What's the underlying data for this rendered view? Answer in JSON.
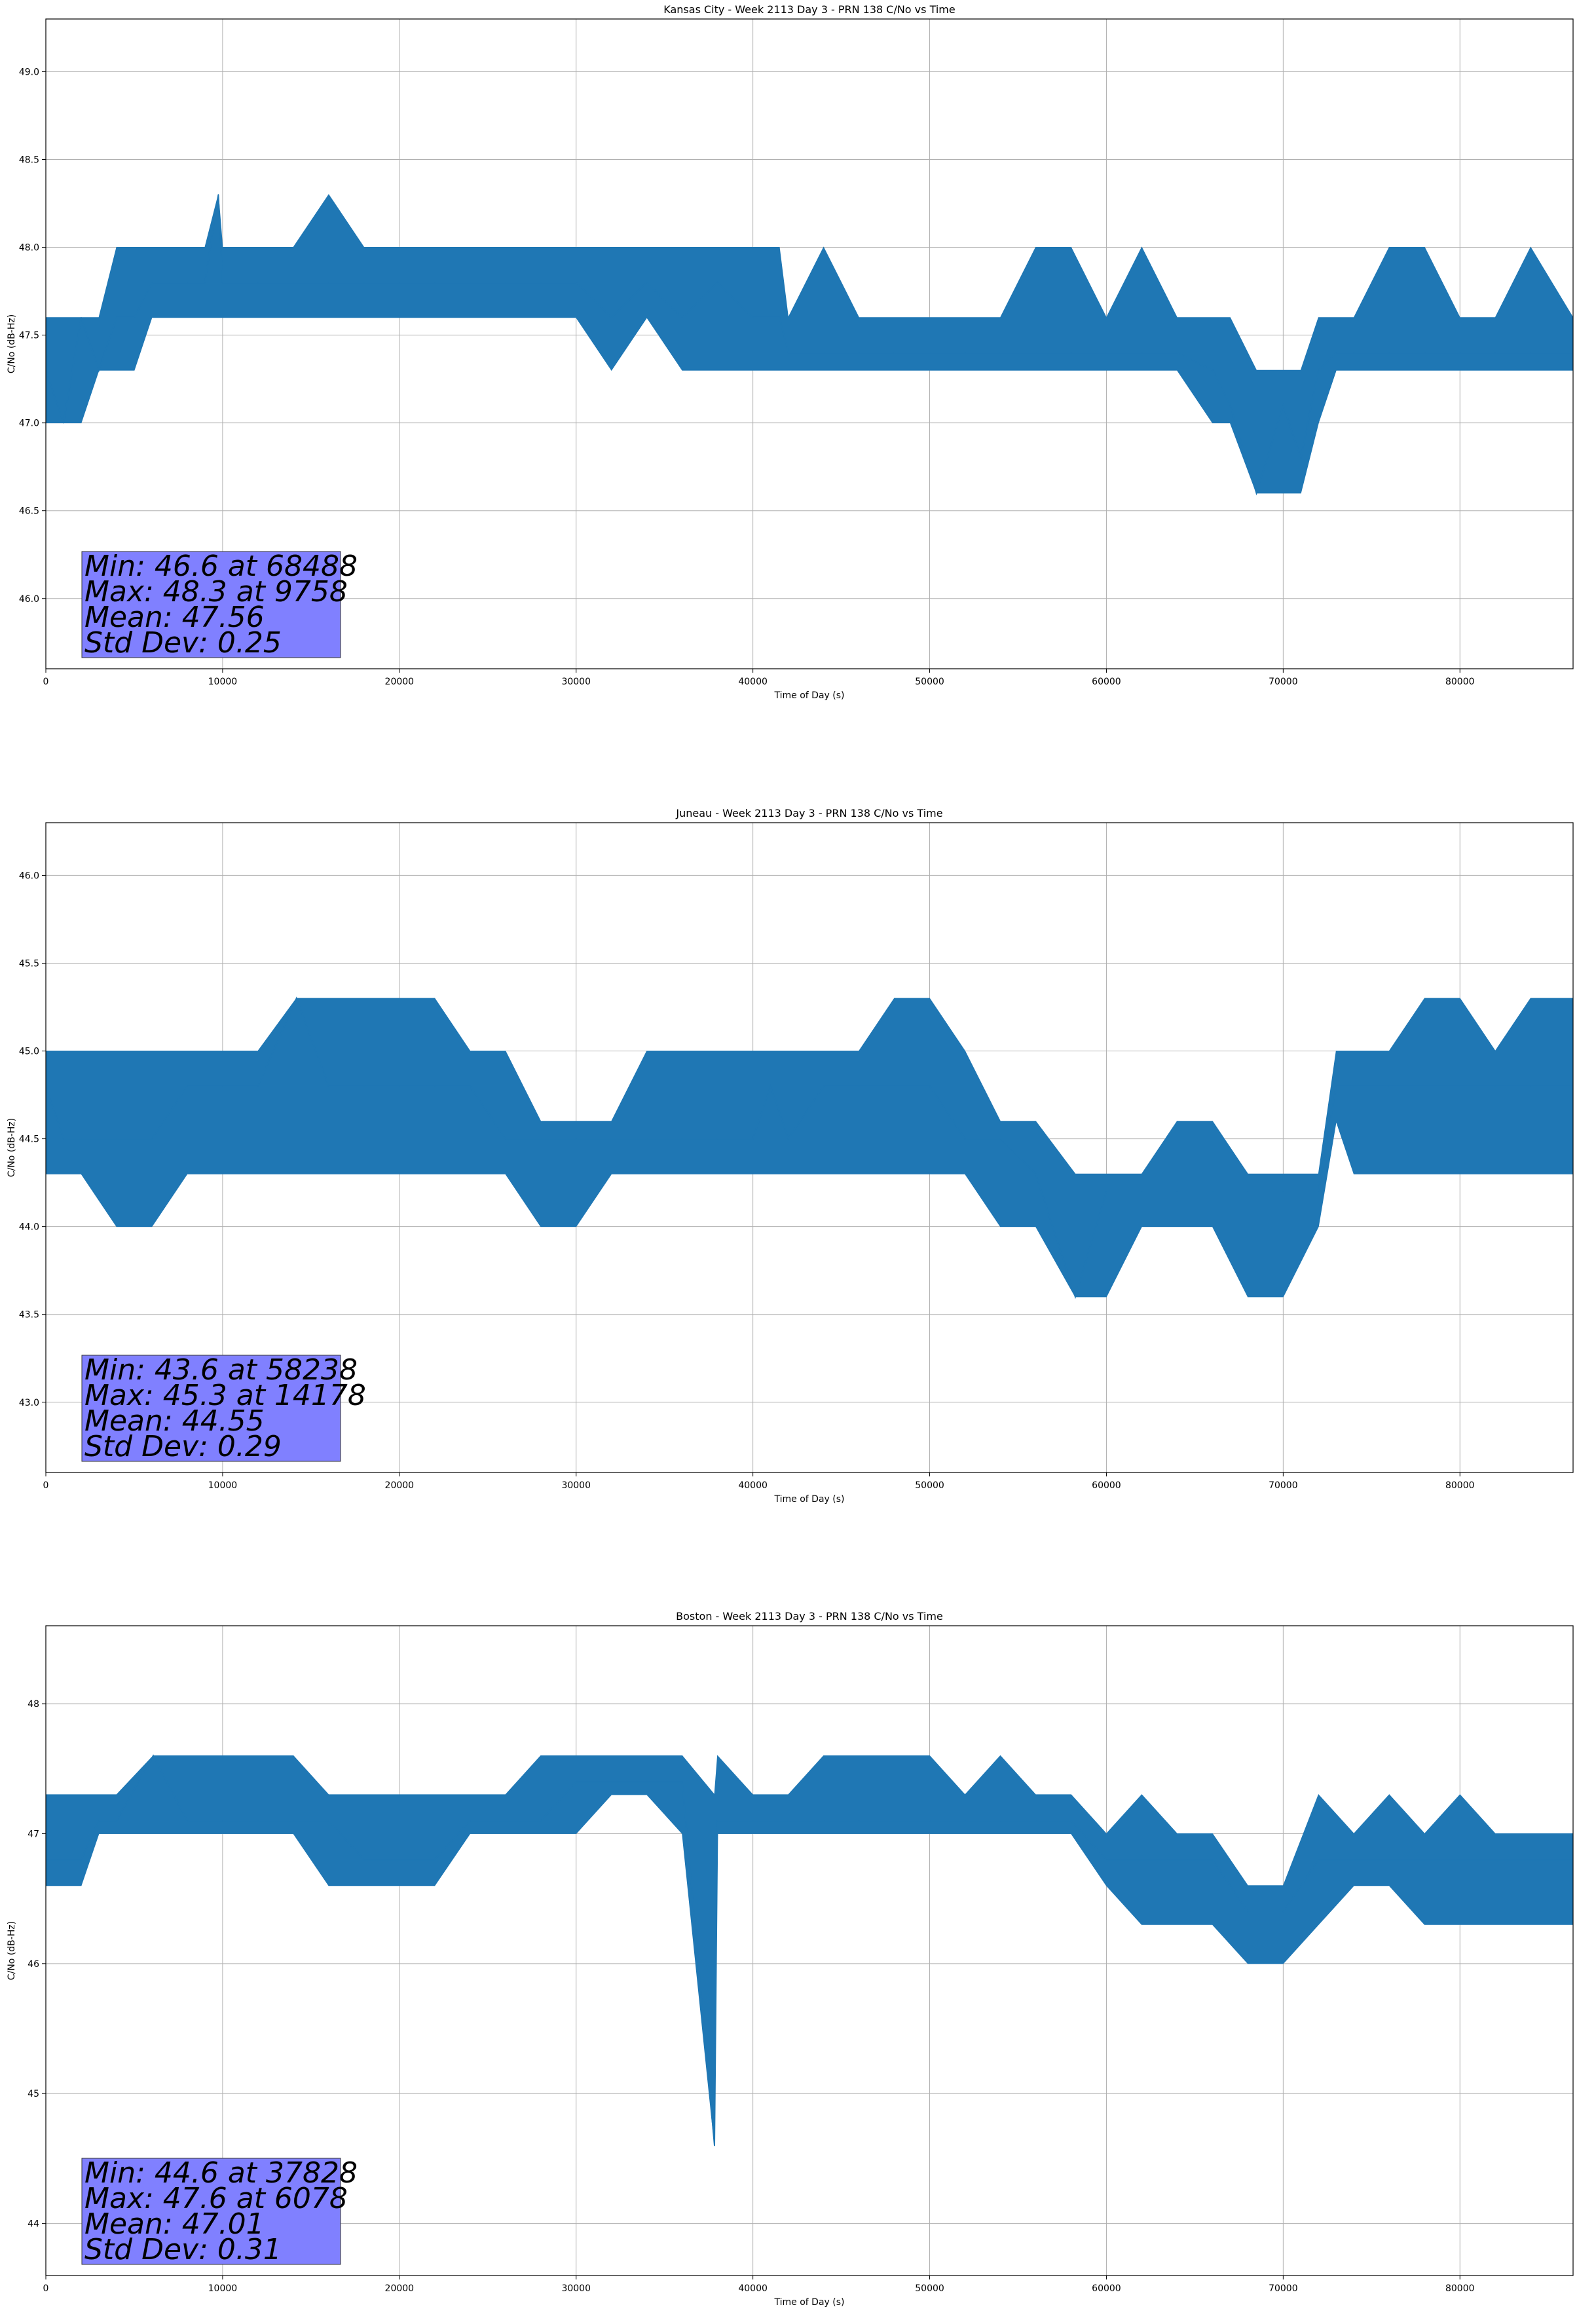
{
  "chart_data": [
    {
      "type": "line",
      "title": "Kansas City - Week 2113 Day 3 - PRN 138 C/No vs Time",
      "xlabel": "Time of Day (s)",
      "ylabel": "C/No (dB-Hz)",
      "xlim": [
        0,
        86400
      ],
      "ylim": [
        45.6,
        49.3
      ],
      "xticks": [
        "0",
        "10000",
        "20000",
        "30000",
        "40000",
        "50000",
        "60000",
        "70000",
        "80000"
      ],
      "yticks": [
        "46.0",
        "46.5",
        "47.0",
        "47.5",
        "48.0",
        "48.5",
        "49.0"
      ],
      "grid": true,
      "color": "#1f77b4",
      "series": [
        {
          "x": [
            0,
            1000,
            2000,
            3000,
            4000,
            5000,
            6000,
            7000,
            8000,
            9000,
            9758,
            10000,
            12000,
            14000,
            16000,
            18000,
            20000,
            22000,
            24000,
            26000,
            28000,
            30000,
            32000,
            34000,
            36000,
            38000,
            40000,
            41500,
            42000,
            44000,
            46000,
            48000,
            50000,
            52000,
            54000,
            56000,
            58000,
            60000,
            62000,
            64000,
            66000,
            67000,
            68488,
            70000,
            71000,
            72000,
            73000,
            74000,
            76000,
            78000,
            80000,
            82000,
            84000,
            86400
          ],
          "y": [
            47.3,
            47.0,
            47.6,
            47.3,
            47.6,
            47.6,
            47.8,
            47.8,
            47.8,
            47.8,
            48.3,
            47.8,
            47.8,
            47.8,
            47.8,
            47.8,
            47.8,
            47.8,
            47.8,
            47.8,
            47.8,
            47.8,
            47.6,
            47.8,
            47.6,
            47.8,
            47.6,
            47.6,
            47.4,
            47.4,
            47.4,
            47.4,
            47.4,
            47.4,
            47.4,
            47.4,
            47.4,
            47.4,
            47.4,
            47.4,
            47.3,
            47.1,
            46.6,
            47.1,
            46.8,
            47.3,
            47.4,
            47.4,
            47.4,
            47.4,
            47.4,
            47.4,
            47.4,
            47.4
          ],
          "band_low": [
            47.0,
            47.0,
            47.0,
            47.3,
            47.3,
            47.3,
            47.6,
            47.6,
            47.6,
            47.6,
            47.6,
            47.6,
            47.6,
            47.6,
            47.6,
            47.6,
            47.6,
            47.6,
            47.6,
            47.6,
            47.6,
            47.6,
            47.3,
            47.6,
            47.3,
            47.3,
            47.3,
            47.3,
            47.3,
            47.3,
            47.3,
            47.3,
            47.3,
            47.3,
            47.3,
            47.3,
            47.3,
            47.3,
            47.3,
            47.3,
            47.0,
            47.0,
            46.6,
            46.6,
            46.6,
            47.0,
            47.3,
            47.3,
            47.3,
            47.3,
            47.3,
            47.3,
            47.3,
            47.3
          ],
          "band_high": [
            47.6,
            47.6,
            47.6,
            47.6,
            48.0,
            48.0,
            48.0,
            48.0,
            48.0,
            48.0,
            48.3,
            48.0,
            48.0,
            48.0,
            48.3,
            48.0,
            48.0,
            48.0,
            48.0,
            48.0,
            48.0,
            48.0,
            48.0,
            48.0,
            48.0,
            48.0,
            48.0,
            48.0,
            47.6,
            48.0,
            47.6,
            47.6,
            47.6,
            47.6,
            47.6,
            48.0,
            48.0,
            47.6,
            48.0,
            47.6,
            47.6,
            47.6,
            47.3,
            47.3,
            47.3,
            47.6,
            47.6,
            47.6,
            48.0,
            48.0,
            47.6,
            47.6,
            48.0,
            47.6
          ]
        }
      ],
      "annotation": {
        "lines": [
          "Min: 46.6 at 68488",
          "Max: 48.3 at 9758",
          "Mean: 47.56",
          "Std Dev: 0.25"
        ],
        "box_color": "#8080ff"
      }
    },
    {
      "type": "line",
      "title": "Juneau - Week 2113 Day 3 - PRN 138 C/No vs Time",
      "xlabel": "Time of Day (s)",
      "ylabel": "C/No (dB-Hz)",
      "xlim": [
        0,
        86400
      ],
      "ylim": [
        42.6,
        46.3
      ],
      "xticks": [
        "0",
        "10000",
        "20000",
        "30000",
        "40000",
        "50000",
        "60000",
        "70000",
        "80000"
      ],
      "yticks": [
        "43.0",
        "43.5",
        "44.0",
        "44.5",
        "45.0",
        "45.5",
        "46.0"
      ],
      "grid": true,
      "color": "#1f77b4",
      "series": [
        {
          "x": [
            0,
            1000,
            2000,
            4000,
            6000,
            8000,
            10000,
            12000,
            14178,
            16000,
            18000,
            20000,
            22000,
            24000,
            26000,
            28000,
            30000,
            32000,
            34000,
            36000,
            38000,
            40000,
            41000,
            42000,
            44000,
            46000,
            48000,
            50000,
            52000,
            54000,
            56000,
            58238,
            60000,
            62000,
            64000,
            66000,
            68000,
            70000,
            72000,
            73000,
            74000,
            76000,
            78000,
            80000,
            82000,
            84000,
            86400
          ],
          "y": [
            44.8,
            44.5,
            44.5,
            44.5,
            44.5,
            44.8,
            44.8,
            44.8,
            45.3,
            44.8,
            44.8,
            44.8,
            44.8,
            44.8,
            44.5,
            44.5,
            44.5,
            44.5,
            44.5,
            44.5,
            44.5,
            44.5,
            44.8,
            44.5,
            44.8,
            44.8,
            44.8,
            44.8,
            44.5,
            44.5,
            44.3,
            43.6,
            44.2,
            44.2,
            44.2,
            44.2,
            44.2,
            44.2,
            44.2,
            44.8,
            44.8,
            44.8,
            44.8,
            44.8,
            44.8,
            44.8,
            44.8
          ],
          "band_low": [
            44.3,
            44.3,
            44.3,
            44.0,
            44.0,
            44.3,
            44.3,
            44.3,
            44.3,
            44.3,
            44.3,
            44.3,
            44.3,
            44.3,
            44.3,
            44.0,
            44.0,
            44.3,
            44.3,
            44.3,
            44.3,
            44.3,
            44.3,
            44.3,
            44.3,
            44.3,
            44.3,
            44.3,
            44.3,
            44.0,
            44.0,
            43.6,
            43.6,
            44.0,
            44.0,
            44.0,
            43.6,
            43.6,
            44.0,
            44.6,
            44.3,
            44.3,
            44.3,
            44.3,
            44.3,
            44.3,
            44.3
          ],
          "band_high": [
            45.0,
            45.0,
            45.0,
            45.0,
            45.0,
            45.0,
            45.0,
            45.0,
            45.3,
            45.3,
            45.3,
            45.3,
            45.3,
            45.0,
            45.0,
            44.6,
            44.6,
            44.6,
            45.0,
            45.0,
            45.0,
            45.0,
            45.0,
            45.0,
            45.0,
            45.0,
            45.3,
            45.3,
            45.0,
            44.6,
            44.6,
            44.3,
            44.3,
            44.3,
            44.6,
            44.6,
            44.3,
            44.3,
            44.3,
            45.0,
            45.0,
            45.0,
            45.3,
            45.3,
            45.0,
            45.3,
            45.3
          ]
        }
      ],
      "annotation": {
        "lines": [
          "Min: 43.6 at 58238",
          "Max: 45.3 at 14178",
          "Mean: 44.55",
          "Std Dev: 0.29"
        ],
        "box_color": "#8080ff"
      }
    },
    {
      "type": "line",
      "title": "Boston - Week 2113 Day 3 - PRN 138 C/No vs Time",
      "xlabel": "Time of Day (s)",
      "ylabel": "C/No (dB-Hz)",
      "xlim": [
        0,
        86400
      ],
      "ylim": [
        43.6,
        48.6
      ],
      "xticks": [
        "0",
        "10000",
        "20000",
        "30000",
        "40000",
        "50000",
        "60000",
        "70000",
        "80000"
      ],
      "yticks": [
        "44",
        "45",
        "46",
        "47",
        "48"
      ],
      "grid": true,
      "color": "#1f77b4",
      "series": [
        {
          "x": [
            0,
            1000,
            2000,
            3000,
            4000,
            6078,
            8000,
            10000,
            12000,
            14000,
            16000,
            18000,
            20000,
            22000,
            24000,
            26000,
            28000,
            30000,
            32000,
            34000,
            36000,
            37828,
            38000,
            40000,
            42000,
            44000,
            46000,
            48000,
            50000,
            52000,
            54000,
            56000,
            58000,
            60000,
            62000,
            64000,
            66000,
            68000,
            70000,
            72000,
            74000,
            76000,
            78000,
            80000,
            82000,
            84000,
            86400
          ],
          "y": [
            46.8,
            46.8,
            46.8,
            47.1,
            47.1,
            47.6,
            47.1,
            47.1,
            47.1,
            47.1,
            47.1,
            46.8,
            46.8,
            46.8,
            47.1,
            47.1,
            47.1,
            47.4,
            47.4,
            47.4,
            47.4,
            44.6,
            47.1,
            47.1,
            47.1,
            47.1,
            47.1,
            47.1,
            47.1,
            47.1,
            47.1,
            47.1,
            47.1,
            46.8,
            46.8,
            46.8,
            46.8,
            46.4,
            46.4,
            46.8,
            46.8,
            46.8,
            46.8,
            46.8,
            46.8,
            46.8,
            46.8
          ],
          "band_low": [
            46.6,
            46.6,
            46.6,
            47.0,
            47.0,
            47.0,
            47.0,
            47.0,
            47.0,
            47.0,
            46.6,
            46.6,
            46.6,
            46.6,
            47.0,
            47.0,
            47.0,
            47.0,
            47.3,
            47.3,
            47.0,
            44.6,
            47.0,
            47.0,
            47.0,
            47.0,
            47.0,
            47.0,
            47.0,
            47.0,
            47.0,
            47.0,
            47.0,
            46.6,
            46.3,
            46.3,
            46.3,
            46.0,
            46.0,
            46.3,
            46.6,
            46.6,
            46.3,
            46.3,
            46.3,
            46.3,
            46.3
          ],
          "band_high": [
            47.3,
            47.3,
            47.3,
            47.3,
            47.3,
            47.6,
            47.6,
            47.6,
            47.6,
            47.6,
            47.3,
            47.3,
            47.3,
            47.3,
            47.3,
            47.3,
            47.6,
            47.6,
            47.6,
            47.6,
            47.6,
            47.3,
            47.6,
            47.3,
            47.3,
            47.6,
            47.6,
            47.6,
            47.6,
            47.3,
            47.6,
            47.3,
            47.3,
            47.0,
            47.3,
            47.0,
            47.0,
            46.6,
            46.6,
            47.3,
            47.0,
            47.3,
            47.0,
            47.3,
            47.0,
            47.0,
            47.0
          ]
        }
      ],
      "annotation": {
        "lines": [
          "Min: 44.6 at 37828",
          "Max: 47.6 at 6078",
          "Mean: 47.01",
          "Std Dev: 0.31"
        ],
        "box_color": "#8080ff"
      }
    }
  ]
}
